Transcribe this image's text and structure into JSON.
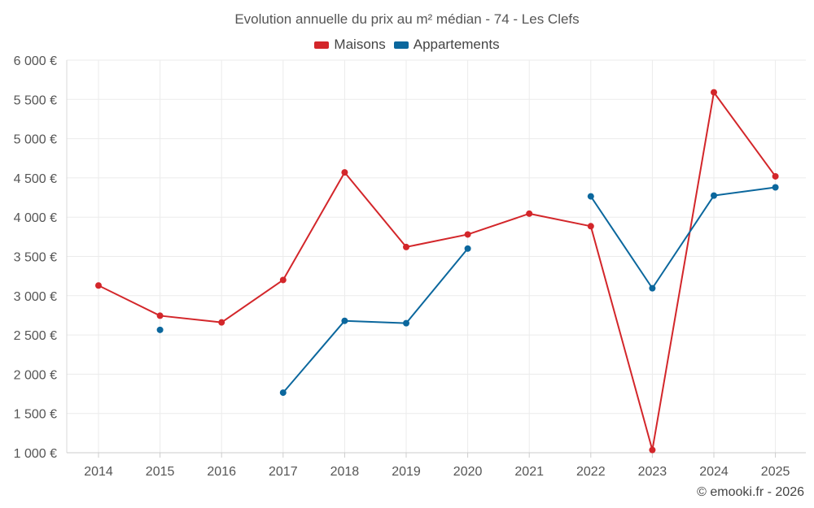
{
  "chart_data": {
    "type": "line",
    "title": "Evolution annuelle du prix au m² médian - 74 - Les Clefs",
    "xlabel": "",
    "ylabel": "",
    "categories": [
      "2014",
      "2015",
      "2016",
      "2017",
      "2018",
      "2019",
      "2020",
      "2021",
      "2022",
      "2023",
      "2024",
      "2025"
    ],
    "ylim": [
      1000,
      6000
    ],
    "yticks": [
      1000,
      1500,
      2000,
      2500,
      3000,
      3500,
      4000,
      4500,
      5000,
      5500,
      6000
    ],
    "ytick_labels": [
      "1 000 €",
      "1 500 €",
      "2 000 €",
      "2 500 €",
      "3 000 €",
      "3 500 €",
      "4 000 €",
      "4 500 €",
      "5 000 €",
      "5 500 €",
      "6 000 €"
    ],
    "grid": true,
    "legend_position": "top-center",
    "series": [
      {
        "name": "Maisons",
        "color": "#d3262a",
        "values": [
          3130,
          2745,
          2660,
          3200,
          4570,
          3620,
          3780,
          4045,
          3885,
          1035,
          5590,
          4520
        ]
      },
      {
        "name": "Appartements",
        "color": "#0b679d",
        "values": [
          null,
          2565,
          null,
          1765,
          2680,
          2650,
          3600,
          null,
          4265,
          3095,
          4275,
          4380
        ]
      }
    ]
  },
  "footer": {
    "credit": "© emooki.fr - 2026"
  }
}
